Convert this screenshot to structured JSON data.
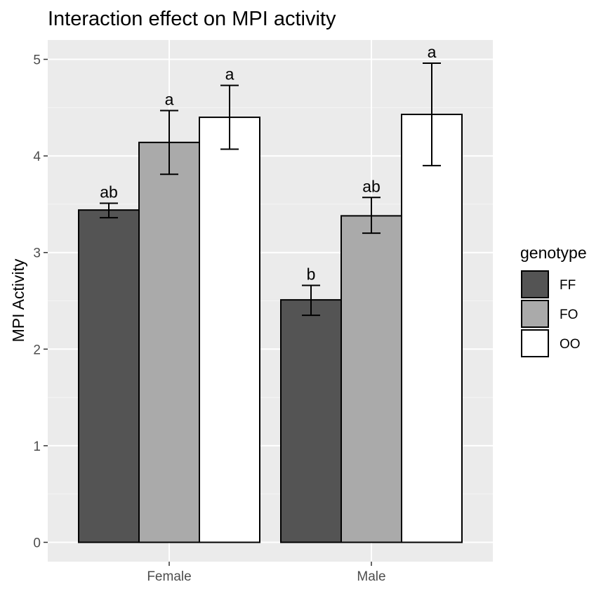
{
  "chart_data": {
    "type": "bar",
    "title": "Interaction effect on MPI activity",
    "xlabel": "",
    "ylabel": "MPI Activity",
    "ylim": [
      -0.2,
      5.2
    ],
    "yticks": [
      0,
      1,
      2,
      3,
      4,
      5
    ],
    "grid": true,
    "categories": [
      "Female",
      "Male"
    ],
    "legend": {
      "title": "genotype",
      "placement": "right"
    },
    "series": [
      {
        "name": "FF",
        "color": "#545454",
        "values": [
          3.44,
          2.51
        ],
        "err_low": [
          3.36,
          2.35
        ],
        "err_high": [
          3.51,
          2.66
        ],
        "labels": [
          "ab",
          "b"
        ]
      },
      {
        "name": "FO",
        "color": "#aaaaaa",
        "values": [
          4.14,
          3.38
        ],
        "err_low": [
          3.81,
          3.2
        ],
        "err_high": [
          4.47,
          3.57
        ],
        "labels": [
          "a",
          "ab"
        ]
      },
      {
        "name": "OO",
        "color": "#ffffff",
        "values": [
          4.4,
          4.43
        ],
        "err_low": [
          4.07,
          3.9
        ],
        "err_high": [
          4.73,
          4.96
        ],
        "labels": [
          "a",
          "a"
        ]
      }
    ]
  }
}
